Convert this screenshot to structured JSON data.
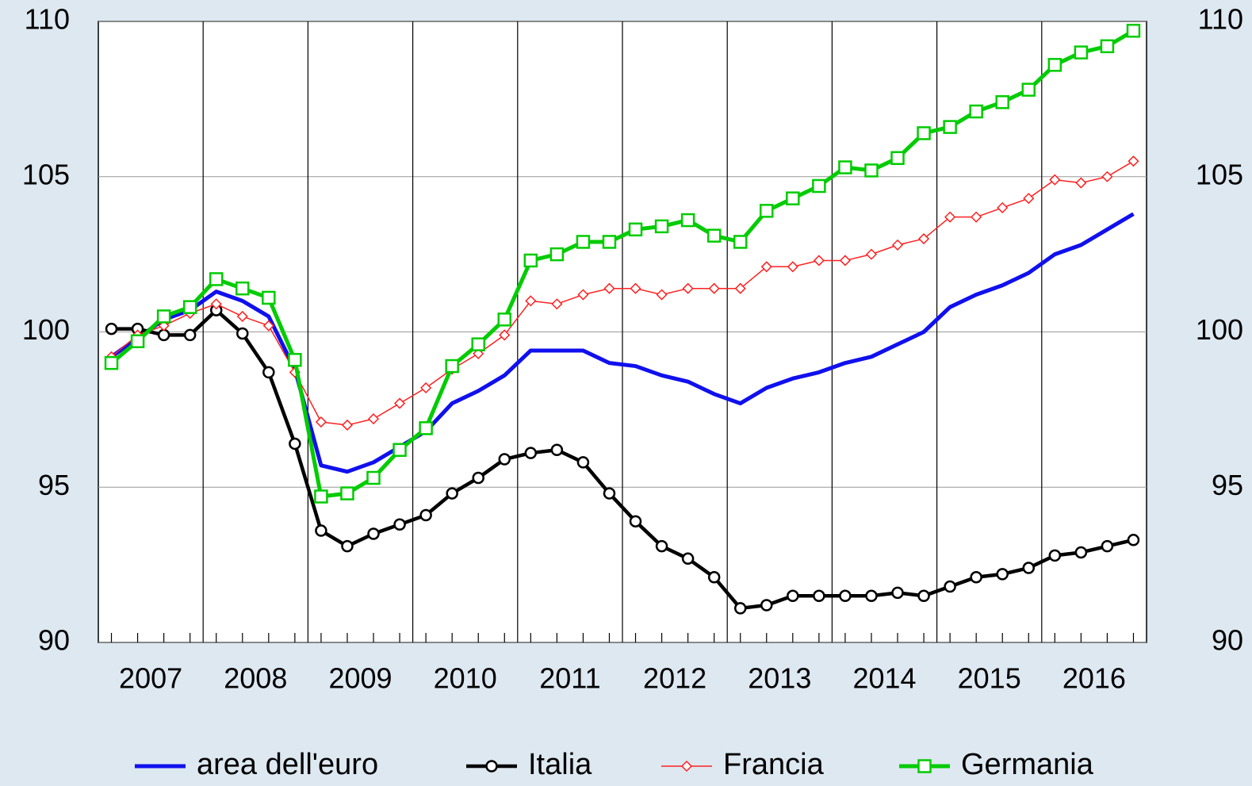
{
  "chart_data": {
    "type": "line",
    "categories": [
      null,
      "2007",
      null,
      null,
      null,
      "2008",
      null,
      null,
      null,
      "2009",
      null,
      null,
      null,
      "2010",
      null,
      null,
      null,
      "2011",
      null,
      null,
      null,
      "2012",
      null,
      null,
      null,
      "2013",
      null,
      null,
      null,
      "2014",
      null,
      null,
      null,
      "2015",
      null,
      null,
      null,
      "2016",
      null,
      null
    ],
    "series": [
      {
        "name": "area dell'euro",
        "color": "#1010ee",
        "marker": "none",
        "values": [
          99.2,
          99.8,
          100.4,
          100.7,
          101.3,
          101.0,
          100.5,
          98.8,
          95.7,
          95.5,
          95.8,
          96.3,
          96.8,
          97.7,
          98.1,
          98.6,
          99.4,
          99.4,
          99.4,
          99.0,
          98.9,
          98.6,
          98.4,
          98.0,
          97.7,
          98.2,
          98.5,
          98.7,
          99.0,
          99.2,
          99.6,
          100.0,
          100.8,
          101.2,
          101.5,
          101.9,
          102.5,
          102.8,
          103.3,
          103.8
        ]
      },
      {
        "name": "Italia",
        "color": "#000000",
        "marker": "circle",
        "values": [
          100.1,
          100.1,
          99.9,
          99.9,
          100.7,
          99.95,
          98.7,
          96.4,
          93.6,
          93.1,
          93.5,
          93.8,
          94.1,
          94.8,
          95.3,
          95.9,
          96.1,
          96.2,
          95.8,
          94.8,
          93.9,
          93.1,
          92.7,
          92.1,
          91.1,
          91.2,
          91.5,
          91.5,
          91.5,
          91.5,
          91.6,
          91.5,
          91.8,
          92.1,
          92.2,
          92.4,
          92.8,
          92.9,
          93.1,
          93.3
        ]
      },
      {
        "name": "Francia",
        "color": "#ff2020",
        "marker": "diamond",
        "values": [
          99.2,
          99.9,
          100.2,
          100.6,
          100.9,
          100.5,
          100.2,
          98.7,
          97.1,
          97.0,
          97.2,
          97.7,
          98.2,
          98.8,
          99.3,
          99.9,
          101.0,
          100.9,
          101.2,
          101.4,
          101.4,
          101.2,
          101.4,
          101.4,
          101.4,
          102.1,
          102.1,
          102.3,
          102.3,
          102.5,
          102.8,
          103.0,
          103.7,
          103.7,
          104.0,
          104.3,
          104.9,
          104.8,
          105.0,
          105.5
        ]
      },
      {
        "name": "Germania",
        "color": "#00cc00",
        "marker": "square",
        "values": [
          99.0,
          99.7,
          100.5,
          100.8,
          101.7,
          101.4,
          101.1,
          99.1,
          94.7,
          94.8,
          95.3,
          96.2,
          96.9,
          98.9,
          99.6,
          100.4,
          102.3,
          102.5,
          102.9,
          102.9,
          103.3,
          103.4,
          103.6,
          103.1,
          102.9,
          103.9,
          104.3,
          104.7,
          105.3,
          105.2,
          105.6,
          106.4,
          106.6,
          107.1,
          107.4,
          107.8,
          108.6,
          109.0,
          109.2,
          109.7
        ]
      }
    ],
    "ylim": [
      90,
      110
    ],
    "yticks": [
      90,
      95,
      100,
      105,
      110
    ],
    "y2lim": [
      90,
      110
    ],
    "y2ticks": [
      90,
      95,
      100,
      105,
      110
    ],
    "grid": true,
    "legend": "bottom"
  }
}
